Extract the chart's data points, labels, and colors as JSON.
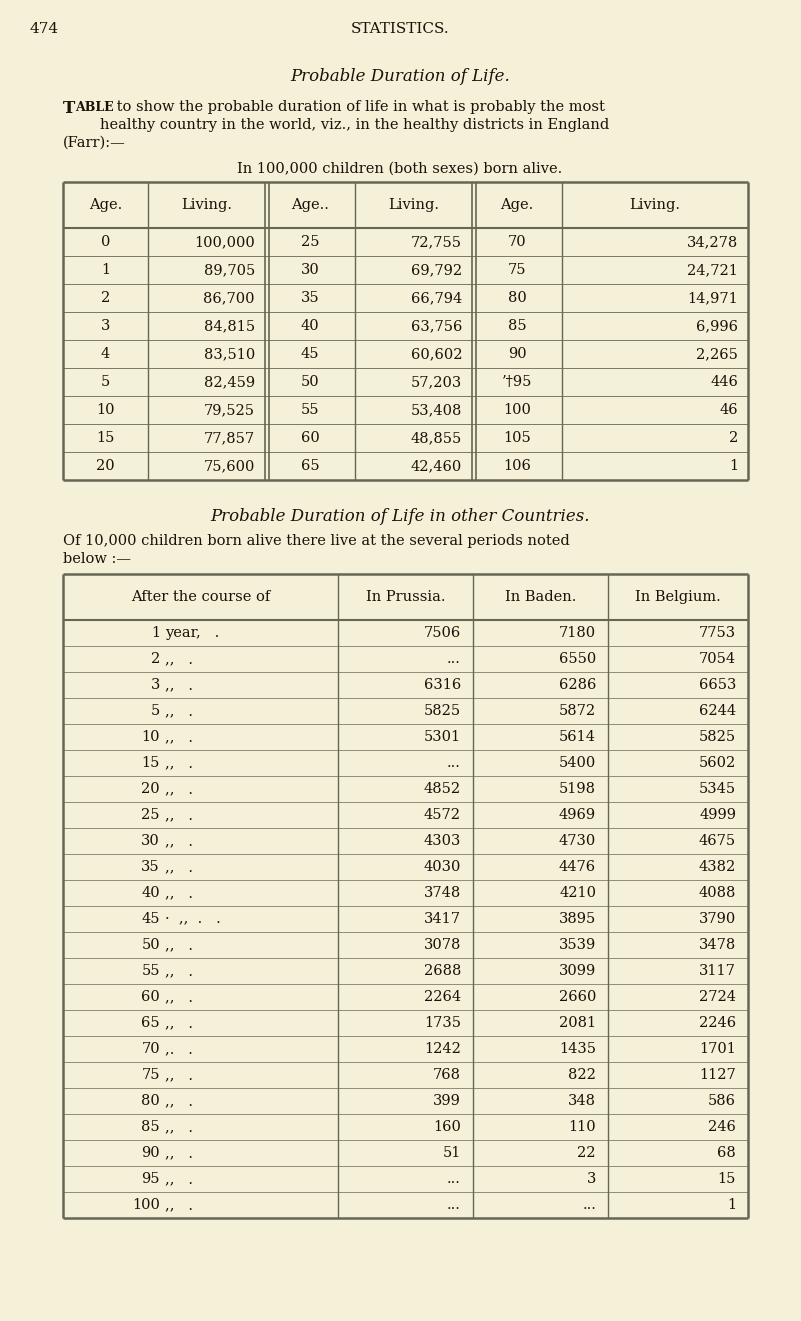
{
  "bg_color": "#f5f0d8",
  "text_color": "#1a1208",
  "page_number": "474",
  "header": "STATISTICS.",
  "title1": "Probable Duration of Life.",
  "para1_line1": "Table to show the probable duration of life in what is probably the most",
  "para1_line2": "healthy country in the world, viz., in the healthy districts in England",
  "para1_line3": "(Farr):—",
  "subtitle1": "In 100,000 children (both sexes) born alive.",
  "table1_headers": [
    "Age.",
    "Living.",
    "Age..",
    "Living.",
    "Age.",
    "Living."
  ],
  "table1_data": [
    [
      "0",
      "100,000",
      "25",
      "72,755",
      "70",
      "34,278"
    ],
    [
      "1",
      "89,705",
      "30",
      "69,792",
      "75",
      "24,721"
    ],
    [
      "2",
      "86,700",
      "35",
      "66,794",
      "80",
      "14,971"
    ],
    [
      "3",
      "84,815",
      "40",
      "63,756",
      "85",
      "6,996"
    ],
    [
      "4",
      "83,510",
      "45",
      "60,602",
      "90",
      "2,265"
    ],
    [
      "5",
      "82,459",
      "50",
      "57,203",
      "’†95",
      "446"
    ],
    [
      "10",
      "79,525",
      "55",
      "53,408",
      "100",
      "46"
    ],
    [
      "15",
      "77,857",
      "60",
      "48,855",
      "105",
      "2"
    ],
    [
      "20",
      "75,600",
      "65",
      "42,460",
      "106",
      "1"
    ]
  ],
  "title2": "Probable Duration of Life in other Countries.",
  "para2_line1": "Of 10,000 children born alive there live at the several periods noted",
  "para2_line2": "below :—",
  "table2_headers": [
    "After the course of",
    "In Prussia.",
    "In Baden.",
    "In Belgium."
  ],
  "table2_col0": [
    "1 year,   .",
    "2 „   .",
    "3 „   .",
    "5 „   .",
    "10 „   .",
    "15 „   .",
    "20 „   .",
    "25 „   .",
    "30 „   .",
    "35 „   .",
    "40 „   .",
    "45 · „   .",
    "50 „   .",
    "55 „   .",
    "60 „   .",
    "65 „   .",
    "70 ,.   .",
    "75 „   .",
    "80 „   .",
    "85 „   .",
    "90 „   .",
    "95 „   .",
    "100 „   ."
  ],
  "table2_col0_num": [
    "1",
    "2",
    "3",
    "5",
    "10",
    "15",
    "20",
    "25",
    "30",
    "35",
    "40",
    "45",
    "50",
    "55",
    "60",
    "65",
    "70",
    "75",
    "80",
    "85",
    "90",
    "95",
    "100"
  ],
  "table2_col0_suf": [
    "year,",
    "\"",
    "\"",
    "\"",
    "\"",
    "\"",
    "\"",
    "\"",
    "\"",
    "\"",
    "\"",
    "· \"",
    "\"",
    "\"",
    "\"",
    "\"",
    ",.",
    "\"",
    "\"",
    "\"",
    "\"",
    "\"",
    "\""
  ],
  "table2_prussia": [
    "7506",
    "...",
    "6316",
    "5825",
    "5301",
    "...",
    "4852",
    "4572",
    "4303",
    "4030",
    "3748",
    "3417",
    "3078",
    "2688",
    "2264",
    "1735",
    "1242",
    "768",
    "399",
    "160",
    "51",
    "...",
    "..."
  ],
  "table2_baden": [
    "7180",
    "6550",
    "6286",
    "5872",
    "5614",
    "5400",
    "5198",
    "4969",
    "4730",
    "4476",
    "4210",
    "3895",
    "3539",
    "3099",
    "2660",
    "2081",
    "1435",
    "822",
    "348",
    "110",
    "22",
    "3",
    "..."
  ],
  "table2_belgium": [
    "7753",
    "7054",
    "6653",
    "6244",
    "5825",
    "5602",
    "5345",
    "4999",
    "4675",
    "4382",
    "4088",
    "3790",
    "3478",
    "3117",
    "2724",
    "2246",
    "1701",
    "1127",
    "586",
    "246",
    "68",
    "15",
    "1"
  ]
}
